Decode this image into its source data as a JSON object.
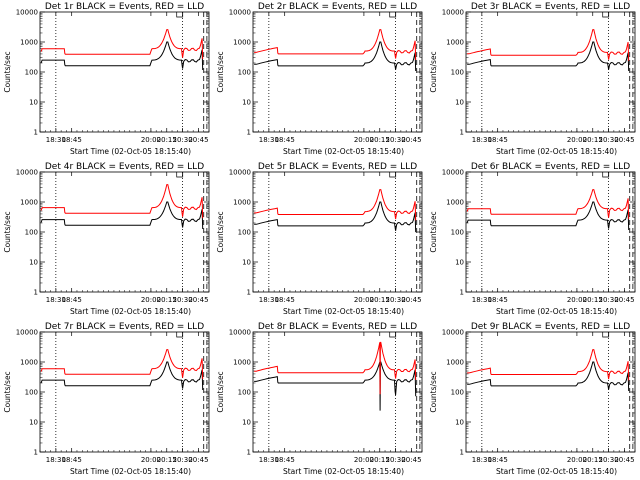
{
  "chart_data": [
    {
      "type": "line",
      "title": "Det 1r BLACK = Events, RED = LLD",
      "xlabel": "Start Time (02-Oct-05 18:15:40)",
      "ylabel": "Counts/sec",
      "yscale": "log",
      "ylim": [
        1,
        10000
      ],
      "xlim": [
        "18:15",
        "20:55"
      ],
      "x_ticks": [
        "18:30",
        "18:45",
        "20:00",
        "20:15",
        "20:30",
        "20:45"
      ],
      "y_ticks": [
        "1",
        "10",
        "100",
        "1000",
        "10000"
      ],
      "dotted_lines": [
        "18:30",
        "20:30"
      ],
      "dashed_lines": [
        "20:50",
        "20:53"
      ],
      "series": [
        {
          "color": "#000000",
          "shape": "a",
          "base": 250,
          "peak": 1000,
          "drop": 130
        },
        {
          "color": "#ff0000",
          "shape": "a",
          "base": 600,
          "peak": 2600,
          "drop": 300
        }
      ]
    },
    {
      "type": "line",
      "title": "Det 2r BLACK = Events, RED = LLD",
      "xlabel": "Start Time (02-Oct-05 18:15:40)",
      "ylabel": "Counts/sec",
      "yscale": "log",
      "ylim": [
        1,
        10000
      ],
      "xlim": [
        "18:15",
        "20:55"
      ],
      "x_ticks": [
        "18:30",
        "18:45",
        "20:00",
        "20:15",
        "20:30",
        "20:45"
      ],
      "y_ticks": [
        "1",
        "10",
        "100",
        "1000",
        "10000"
      ],
      "dotted_lines": [
        "18:30",
        "20:30"
      ],
      "dashed_lines": [
        "20:50",
        "20:53"
      ],
      "series": [
        {
          "color": "#000000",
          "shape": "b",
          "base": 200,
          "peak": 1000,
          "drop": 120
        },
        {
          "color": "#ff0000",
          "shape": "b",
          "base": 500,
          "peak": 2600,
          "drop": 280
        }
      ]
    },
    {
      "type": "line",
      "title": "Det 3r BLACK = Events, RED = LLD",
      "xlabel": "Start Time (02-Oct-05 18:15:40)",
      "ylabel": "Counts/sec",
      "yscale": "log",
      "ylim": [
        1,
        10000
      ],
      "xlim": [
        "18:15",
        "20:55"
      ],
      "x_ticks": [
        "18:30",
        "18:45",
        "20:00",
        "20:15",
        "20:30",
        "20:45"
      ],
      "y_ticks": [
        "1",
        "10",
        "100",
        "1000",
        "10000"
      ],
      "dotted_lines": [
        "18:30",
        "20:30"
      ],
      "dashed_lines": [
        "20:50",
        "20:53"
      ],
      "series": [
        {
          "color": "#000000",
          "shape": "b",
          "base": 200,
          "peak": 1000,
          "drop": 120
        },
        {
          "color": "#ff0000",
          "shape": "b",
          "base": 450,
          "peak": 2600,
          "drop": 260
        }
      ]
    },
    {
      "type": "line",
      "title": "Det 4r BLACK = Events, RED = LLD",
      "xlabel": "Start Time (02-Oct-05 18:15:40)",
      "ylabel": "Counts/sec",
      "yscale": "log",
      "ylim": [
        1,
        10000
      ],
      "xlim": [
        "18:15",
        "20:55"
      ],
      "x_ticks": [
        "18:30",
        "18:45",
        "20:00",
        "20:15",
        "20:30",
        "20:45"
      ],
      "y_ticks": [
        "1",
        "10",
        "100",
        "1000",
        "10000"
      ],
      "dotted_lines": [
        "18:30",
        "20:30"
      ],
      "dashed_lines": [
        "20:50",
        "20:53"
      ],
      "series": [
        {
          "color": "#000000",
          "shape": "a",
          "base": 260,
          "peak": 1000,
          "drop": 140
        },
        {
          "color": "#ff0000",
          "shape": "a",
          "base": 650,
          "peak": 3800,
          "drop": 320
        }
      ]
    },
    {
      "type": "line",
      "title": "Det 5r BLACK = Events, RED = LLD",
      "xlabel": "Start Time (02-Oct-05 18:15:40)",
      "ylabel": "Counts/sec",
      "yscale": "log",
      "ylim": [
        1,
        10000
      ],
      "xlim": [
        "18:15",
        "20:55"
      ],
      "x_ticks": [
        "18:30",
        "18:45",
        "20:00",
        "20:15",
        "20:30",
        "20:45"
      ],
      "y_ticks": [
        "1",
        "10",
        "100",
        "1000",
        "10000"
      ],
      "dotted_lines": [
        "18:30",
        "20:30"
      ],
      "dashed_lines": [
        "20:50",
        "20:53"
      ],
      "series": [
        {
          "color": "#000000",
          "shape": "b",
          "base": 200,
          "peak": 1000,
          "drop": 110
        },
        {
          "color": "#ff0000",
          "shape": "b",
          "base": 480,
          "peak": 2600,
          "drop": 270
        }
      ]
    },
    {
      "type": "line",
      "title": "Det 6r BLACK = Events, RED = LLD",
      "xlabel": "Start Time (02-Oct-05 18:15:40)",
      "ylabel": "Counts/sec",
      "yscale": "log",
      "ylim": [
        1,
        10000
      ],
      "xlim": [
        "18:15",
        "20:55"
      ],
      "x_ticks": [
        "18:30",
        "18:45",
        "20:00",
        "20:15",
        "20:30",
        "20:45"
      ],
      "y_ticks": [
        "1",
        "10",
        "100",
        "1000",
        "10000"
      ],
      "dotted_lines": [
        "18:30",
        "20:30"
      ],
      "dashed_lines": [
        "20:50",
        "20:53"
      ],
      "series": [
        {
          "color": "#000000",
          "shape": "a",
          "base": 250,
          "peak": 1000,
          "drop": 130
        },
        {
          "color": "#ff0000",
          "shape": "a",
          "base": 600,
          "peak": 2600,
          "drop": 300
        }
      ]
    },
    {
      "type": "line",
      "title": "Det 7r BLACK = Events, RED = LLD",
      "xlabel": "Start Time (02-Oct-05 18:15:40)",
      "ylabel": "Counts/sec",
      "yscale": "log",
      "ylim": [
        1,
        10000
      ],
      "xlim": [
        "18:15",
        "20:55"
      ],
      "x_ticks": [
        "18:30",
        "18:45",
        "20:00",
        "20:15",
        "20:30",
        "20:45"
      ],
      "y_ticks": [
        "1",
        "10",
        "100",
        "1000",
        "10000"
      ],
      "dotted_lines": [
        "18:30",
        "20:30"
      ],
      "dashed_lines": [
        "20:50",
        "20:53"
      ],
      "series": [
        {
          "color": "#000000",
          "shape": "a",
          "base": 250,
          "peak": 1000,
          "drop": 130
        },
        {
          "color": "#ff0000",
          "shape": "a",
          "base": 600,
          "peak": 2600,
          "drop": 300
        }
      ]
    },
    {
      "type": "line",
      "title": "Det 8r BLACK = Events, RED = LLD",
      "xlabel": "Start Time (02-Oct-05 18:15:40)",
      "ylabel": "Counts/sec",
      "yscale": "log",
      "ylim": [
        1,
        10000
      ],
      "xlim": [
        "18:15",
        "20:55"
      ],
      "x_ticks": [
        "18:30",
        "18:45",
        "20:00",
        "20:15",
        "20:30",
        "20:45"
      ],
      "y_ticks": [
        "1",
        "10",
        "100",
        "1000",
        "10000"
      ],
      "dotted_lines": [
        "18:30",
        "20:30"
      ],
      "dashed_lines": [
        "20:50",
        "20:53"
      ],
      "series": [
        {
          "color": "#000000",
          "shape": "c",
          "base": 250,
          "peak": 1000,
          "drop": 80
        },
        {
          "color": "#ff0000",
          "shape": "c",
          "base": 550,
          "peak": 4500,
          "drop": 280
        }
      ]
    },
    {
      "type": "line",
      "title": "Det 9r BLACK = Events, RED = LLD",
      "xlabel": "Start Time (02-Oct-05 18:15:40)",
      "ylabel": "Counts/sec",
      "yscale": "log",
      "ylim": [
        1,
        10000
      ],
      "xlim": [
        "18:15",
        "20:55"
      ],
      "x_ticks": [
        "18:30",
        "18:45",
        "20:00",
        "20:15",
        "20:30",
        "20:45"
      ],
      "y_ticks": [
        "1",
        "10",
        "100",
        "1000",
        "10000"
      ],
      "dotted_lines": [
        "18:30",
        "20:30"
      ],
      "dashed_lines": [
        "20:50",
        "20:53"
      ],
      "series": [
        {
          "color": "#000000",
          "shape": "b",
          "base": 200,
          "peak": 1000,
          "drop": 120
        },
        {
          "color": "#ff0000",
          "shape": "b",
          "base": 480,
          "peak": 2600,
          "drop": 270
        }
      ]
    }
  ]
}
